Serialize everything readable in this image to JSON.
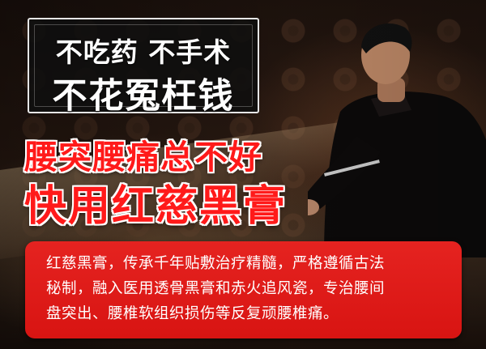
{
  "colors": {
    "accent_red": "#ff1a1a",
    "panel_red": "#e52320",
    "headline_box_bg": "#0f0f0f",
    "text_white": "#ffffff"
  },
  "headline": {
    "line1": "不吃药 不手术",
    "line2": "不花冤枉钱"
  },
  "title": {
    "line1": "腰突腰痛总不好",
    "line2": "快用红慈黑膏"
  },
  "description": {
    "line1": "红慈黑膏，传承千年贴敷治疗精髓，严格遵循古法",
    "line2": "秘制，融入医用透骨黑膏和赤火追风瓷，专治腰间",
    "line3": "盘突出、腰椎软组织损伤等反复顽腰椎痛。"
  },
  "background": {
    "figure": "man-in-traditional-robe",
    "props": [
      "table",
      "bowl",
      "spatula"
    ]
  }
}
